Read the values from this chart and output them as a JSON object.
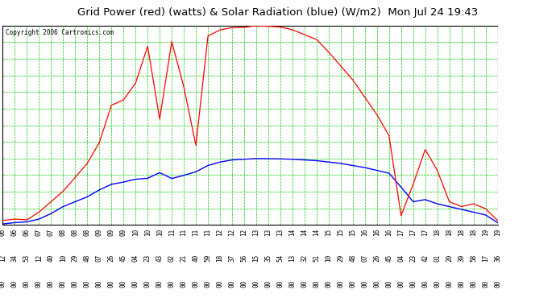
{
  "title": "Grid Power (red) (watts) & Solar Radiation (blue) (W/m2)  Mon Jul 24 19:43",
  "copyright": "Copyright 2006 Cartronics.com",
  "bg_color": "#FFFFFF",
  "grid_color": "#00CC00",
  "red_line_color": "#FF0000",
  "blue_line_color": "#0000FF",
  "title_color": "#000000",
  "y_ticks": [
    15.5,
    254.2,
    492.8,
    731.4,
    970.0,
    1208.6,
    1447.3,
    1685.9,
    1924.5,
    2163.1,
    2401.7,
    2640.4,
    2879.0
  ],
  "y_min": 15.5,
  "y_max": 2879.0,
  "x_labels": [
    "06:12",
    "06:34",
    "06:53",
    "07:12",
    "07:40",
    "08:10",
    "08:29",
    "08:48",
    "09:07",
    "09:26",
    "09:45",
    "10:04",
    "10:23",
    "10:43",
    "11:02",
    "11:21",
    "11:40",
    "11:59",
    "12:18",
    "12:37",
    "12:56",
    "13:15",
    "13:35",
    "13:54",
    "14:13",
    "14:32",
    "14:51",
    "15:10",
    "15:29",
    "15:48",
    "16:07",
    "16:26",
    "16:45",
    "17:04",
    "17:23",
    "17:42",
    "18:01",
    "18:20",
    "18:39",
    "18:58",
    "19:17",
    "19:36"
  ]
}
